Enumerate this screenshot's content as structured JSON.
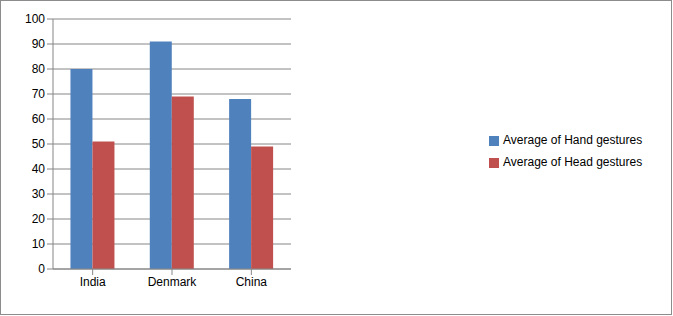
{
  "chart_data": {
    "type": "bar",
    "categories": [
      "India",
      "Denmark",
      "China"
    ],
    "series": [
      {
        "name": "Average of Hand gestures",
        "color": "#4f81bd",
        "values": [
          80,
          91,
          68
        ]
      },
      {
        "name": "Average of Head gestures",
        "color": "#c0504d",
        "values": [
          51,
          69,
          49
        ]
      }
    ],
    "ylim": [
      0,
      100
    ],
    "yticks": [
      0,
      10,
      20,
      30,
      40,
      50,
      60,
      70,
      80,
      90,
      100
    ],
    "grid": true,
    "legend": "right"
  }
}
